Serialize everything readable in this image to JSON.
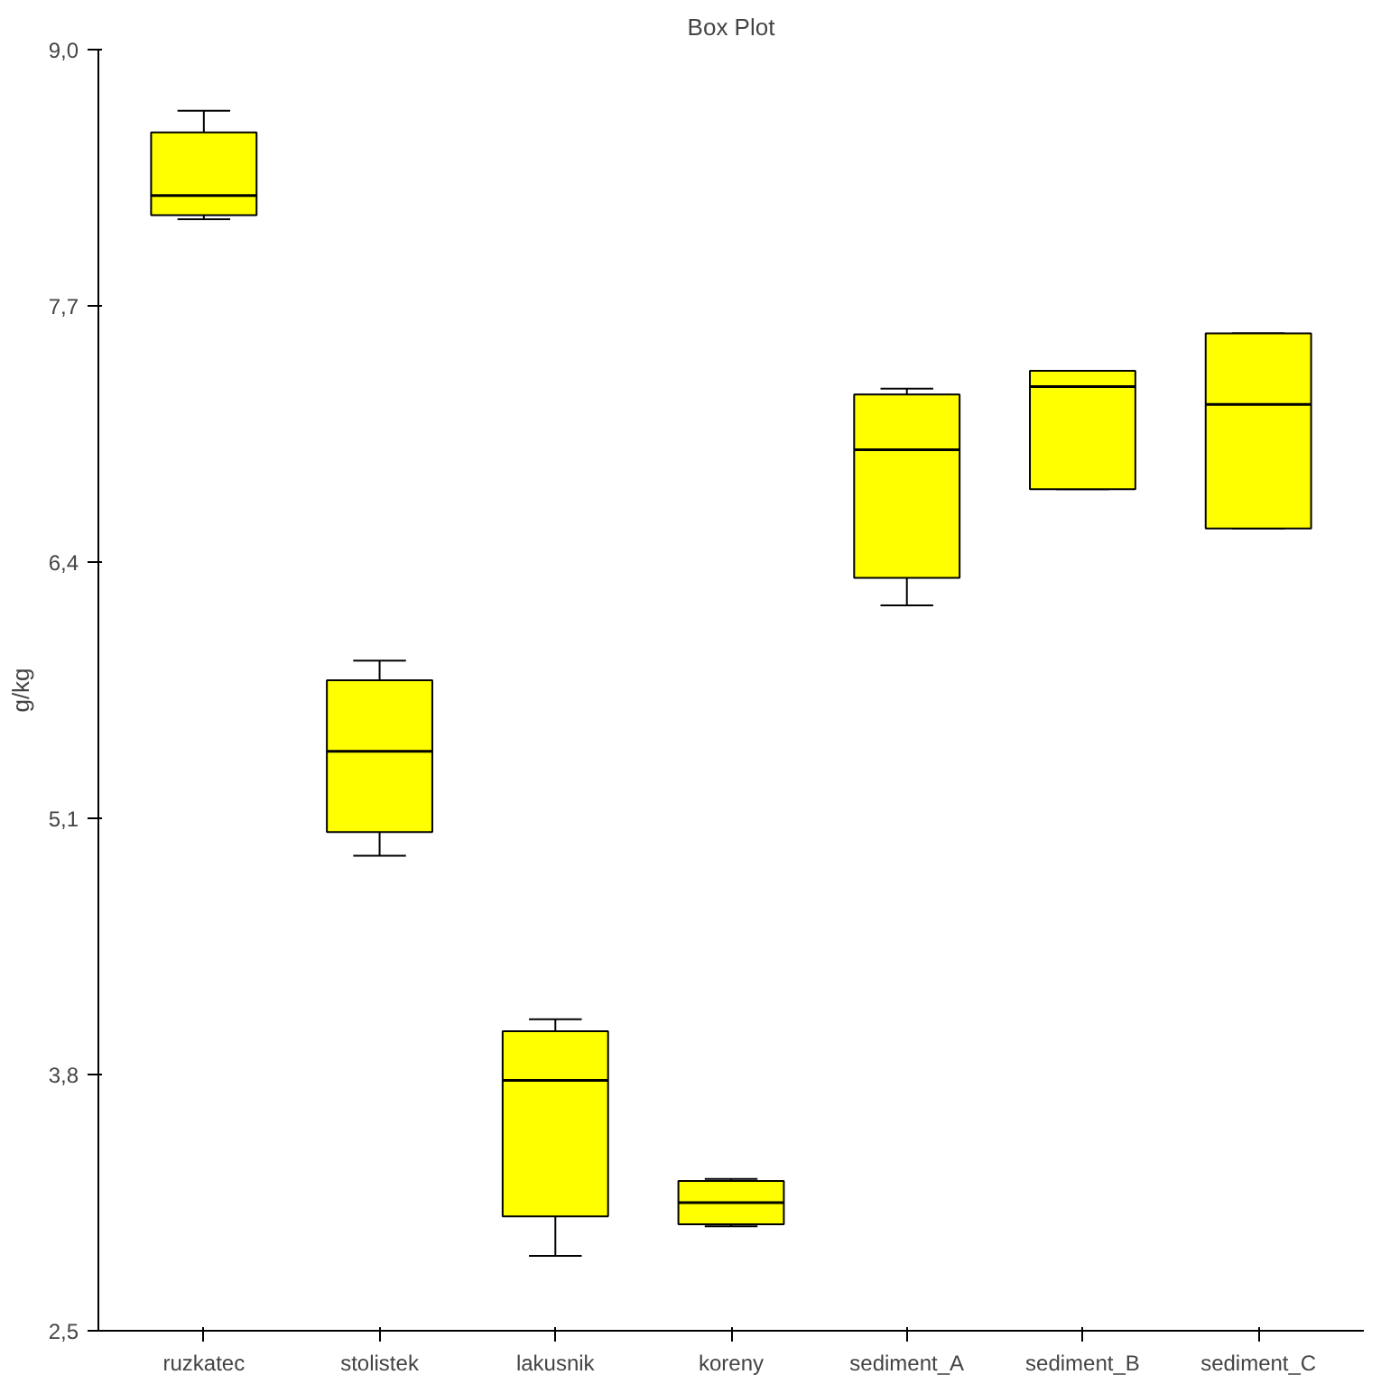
{
  "chart_data": {
    "type": "box",
    "title": "Box Plot",
    "ylabel": "g/kg",
    "categories": [
      "ruzkatec",
      "stolistek",
      "lakusnik",
      "koreny",
      "sediment_A",
      "sediment_B",
      "sediment_C"
    ],
    "boxes": [
      {
        "low": 8.14,
        "q1": 8.16,
        "median": 8.26,
        "q3": 8.58,
        "high": 8.69
      },
      {
        "low": 4.91,
        "q1": 5.03,
        "median": 5.44,
        "q3": 5.8,
        "high": 5.9
      },
      {
        "low": 2.88,
        "q1": 3.08,
        "median": 3.77,
        "q3": 4.02,
        "high": 4.08
      },
      {
        "low": 3.03,
        "q1": 3.04,
        "median": 3.15,
        "q3": 3.26,
        "high": 3.27
      },
      {
        "low": 6.18,
        "q1": 6.32,
        "median": 6.97,
        "q3": 7.25,
        "high": 7.28
      },
      {
        "low": 6.77,
        "q1": 6.77,
        "median": 7.29,
        "q3": 7.37,
        "high": 7.37
      },
      {
        "low": 6.57,
        "q1": 6.57,
        "median": 7.2,
        "q3": 7.56,
        "high": 7.56
      }
    ],
    "color": "#ffff00",
    "ylim": [
      2.5,
      9.0
    ],
    "yticks": [
      {
        "value": 2.5,
        "label": "2,5"
      },
      {
        "value": 3.8,
        "label": "3,8"
      },
      {
        "value": 5.1,
        "label": "5,1"
      },
      {
        "value": 6.4,
        "label": "6,4"
      },
      {
        "value": 7.7,
        "label": "7,7"
      },
      {
        "value": 9.0,
        "label": "9,0"
      }
    ],
    "grid": false
  }
}
